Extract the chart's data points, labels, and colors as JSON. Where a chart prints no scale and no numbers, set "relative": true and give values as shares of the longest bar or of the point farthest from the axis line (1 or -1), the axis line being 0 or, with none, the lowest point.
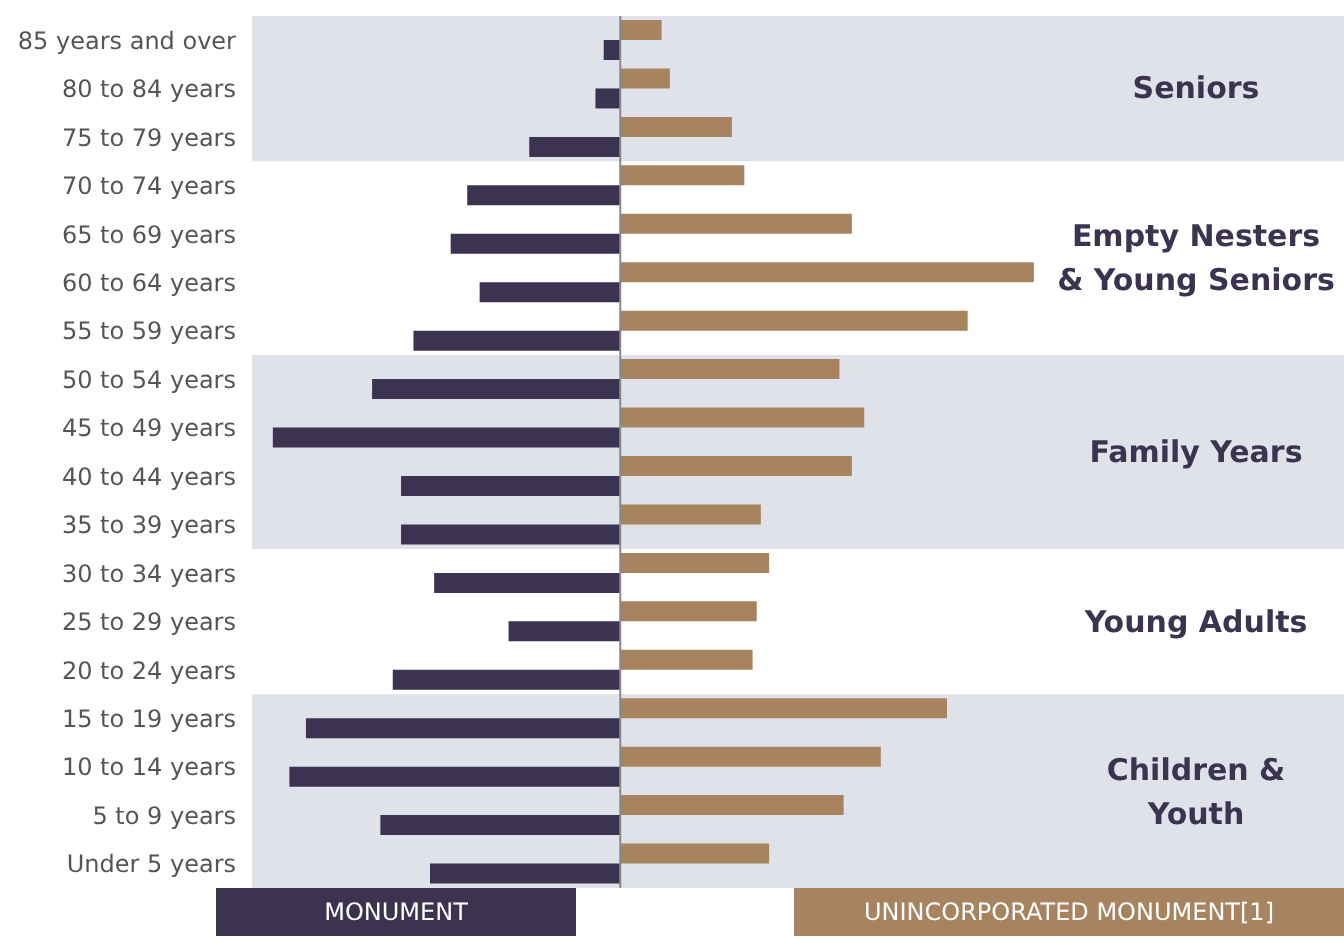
{
  "chart_data": {
    "type": "bar",
    "orientation": "horizontal",
    "relative": true,
    "categories": [
      "85 years and over",
      "80 to 84 years",
      "75 to 79 years",
      "70 to 74 years",
      "65 to 69 years",
      "60 to 64 years",
      "55 to 59 years",
      "50 to 54 years",
      "45 to 49 years",
      "40 to 44 years",
      "35 to 39 years",
      "30 to 34 years",
      "25 to 29 years",
      "20 to 24 years",
      "15 to 19 years",
      "10 to 14 years",
      "5 to 9 years",
      "Under 5 years"
    ],
    "series": [
      {
        "name": "MONUMENT",
        "color": "#3b3350",
        "values": [
          -0.04,
          -0.06,
          -0.22,
          -0.37,
          -0.41,
          -0.34,
          -0.5,
          -0.6,
          -0.84,
          -0.53,
          -0.53,
          -0.45,
          -0.27,
          -0.55,
          -0.76,
          -0.8,
          -0.58,
          -0.46
        ]
      },
      {
        "name": "UNINCORPORATED MONUMENT[1]",
        "color": "#a8835f",
        "values": [
          0.1,
          0.12,
          0.27,
          0.3,
          0.56,
          1,
          0.84,
          0.53,
          0.59,
          0.56,
          0.34,
          0.36,
          0.33,
          0.32,
          0.79,
          0.63,
          0.54,
          0.36
        ]
      }
    ],
    "bands": [
      {
        "axis": "y",
        "from": "85 years and over",
        "to": "75 to 79 years",
        "label": "Seniors",
        "color": "#dfe2e8"
      },
      {
        "axis": "y",
        "from": "50 to 54 years",
        "to": "35 to 39 years",
        "label": "Family Years",
        "color": "#dfe2e8"
      },
      {
        "axis": "y",
        "from": "15 to 19 years",
        "to": "Under 5 years",
        "label": "Children & Youth",
        "color": "#dfe2e8"
      }
    ],
    "annotations": [
      "Empty Nesters & Young Seniors",
      "Young Adults"
    ],
    "legend": "bottom"
  }
}
